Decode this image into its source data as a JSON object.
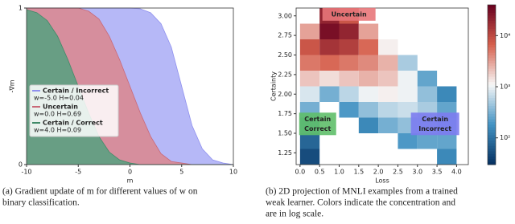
{
  "chart_data": [
    {
      "type": "area",
      "x_label": "m",
      "y_label": "-∇m",
      "x": [
        -10,
        -9,
        -8,
        -7,
        -6,
        -5,
        -4,
        -3,
        -2,
        -1,
        0,
        1,
        2,
        3,
        4,
        5,
        6,
        7,
        8,
        9,
        10
      ],
      "series": [
        {
          "name": "Certain / Incorrect",
          "legend_detail": "w=-5.0  H=0.04",
          "color": "#b0b2f6",
          "line_color": "#8f90ee",
          "values": [
            1,
            1,
            1,
            1,
            1,
            1,
            1,
            1,
            1,
            1,
            1,
            0.995,
            0.97,
            0.9,
            0.75,
            0.5,
            0.25,
            0.1,
            0.03,
            0.01,
            0
          ]
        },
        {
          "name": "Uncertain",
          "legend_detail": "w=0.0  H=0.69",
          "color": "#d98a95",
          "line_color": "#c96878",
          "values": [
            1,
            1,
            1,
            1,
            1,
            1,
            0.98,
            0.93,
            0.82,
            0.67,
            0.5,
            0.33,
            0.18,
            0.07,
            0.02,
            0.01,
            0,
            0,
            0,
            0,
            0
          ]
        },
        {
          "name": "Certain / Correct",
          "legend_detail": "w=4.0  H=0.09",
          "color": "#5e9f82",
          "line_color": "#3f8a68",
          "values": [
            0.99,
            0.97,
            0.92,
            0.82,
            0.67,
            0.5,
            0.33,
            0.18,
            0.08,
            0.03,
            0.01,
            0,
            0,
            0,
            0,
            0,
            0,
            0,
            0,
            0,
            0
          ]
        }
      ],
      "xlim": [
        -10,
        10
      ],
      "ylim": [
        0,
        1
      ],
      "xticks": [
        -10,
        -5,
        0,
        5,
        10
      ],
      "yticks": [
        0,
        1
      ],
      "grid": false,
      "caption": [
        "(a) Gradient update of m for different values of w on",
        "binary classification."
      ]
    },
    {
      "type": "heatmap",
      "x_label": "Loss",
      "y_label": "Certainty",
      "x": [
        0.25,
        0.25,
        0.25,
        0.25,
        0.25,
        0.25,
        0.25,
        0.25,
        0.25,
        0.75,
        0.75,
        0.75,
        0.75,
        0.75,
        0.75,
        1.25,
        1.25,
        1.25,
        1.25,
        1.25,
        1.25,
        1.25,
        1.75,
        1.75,
        1.75,
        1.75,
        1.75,
        1.75,
        1.75,
        2.25,
        2.25,
        2.25,
        2.25,
        2.25,
        2.25,
        2.75,
        2.75,
        2.75,
        2.75,
        2.75,
        2.75,
        3.25,
        3.25,
        3.25,
        3.25,
        3.25,
        3.75,
        3.75,
        3.75,
        3.75,
        3.75
      ],
      "y": [
        1.2,
        1.4,
        1.6,
        1.8,
        2.0,
        2.2,
        2.4,
        2.6,
        2.8,
        2.0,
        2.2,
        2.4,
        2.6,
        2.8,
        3.0,
        1.8,
        2.0,
        2.2,
        2.4,
        2.6,
        2.8,
        3.0,
        1.6,
        1.8,
        2.0,
        2.2,
        2.4,
        2.6,
        2.8,
        1.6,
        1.8,
        2.0,
        2.2,
        2.4,
        2.6,
        1.4,
        1.6,
        1.8,
        2.0,
        2.2,
        2.4,
        1.4,
        1.6,
        1.8,
        2.0,
        2.2,
        1.2,
        1.4,
        1.6,
        1.8,
        2.0
      ],
      "values": [
        50,
        80,
        150,
        300,
        800,
        2000,
        5000,
        8000,
        3000,
        300,
        1500,
        6000,
        15000,
        30000,
        20000,
        200,
        600,
        2000,
        5000,
        12000,
        20000,
        8000,
        150,
        400,
        1000,
        2500,
        4000,
        6000,
        3000,
        300,
        600,
        1200,
        2000,
        2500,
        1200,
        200,
        400,
        700,
        1000,
        1000,
        500,
        250,
        400,
        500,
        400,
        250,
        150,
        250,
        300,
        250,
        150
      ],
      "xlim": [
        -0.1,
        4.3
      ],
      "ylim": [
        1.1,
        3.1
      ],
      "xticks": [
        {
          "value": 0,
          "label": "0.0"
        },
        0.5,
        {
          "value": 1,
          "label": "1.0"
        },
        1.5,
        {
          "value": 2,
          "label": "2.0"
        },
        2.5,
        {
          "value": 3,
          "label": "3.0"
        },
        3.5,
        {
          "value": 4,
          "label": "4.0"
        }
      ],
      "yticks": [
        1.25,
        {
          "value": 1.5,
          "label": "1.50"
        },
        1.75,
        {
          "value": 2,
          "label": "2.00"
        },
        2.25,
        {
          "value": 2.5,
          "label": "2.50"
        },
        2.75,
        {
          "value": 3,
          "label": "3.00"
        }
      ],
      "log_color_scale": true,
      "clim": [
        30,
        40000
      ],
      "colormap": [
        "#053061",
        "#4393c3",
        "#f7f7f7",
        "#d6604d",
        "#67001f"
      ],
      "cticks": [
        {
          "value": 100,
          "label": "10²"
        },
        {
          "value": 1000,
          "label": "10³"
        },
        {
          "value": 10000,
          "label": "10⁴"
        }
      ],
      "annotations": [
        {
          "lines": [
            "Uncertain"
          ],
          "color": "#e8777a"
        },
        {
          "lines": [
            "Certain",
            "Correct"
          ],
          "color": "#5fbf6a"
        },
        {
          "lines": [
            "Certain",
            "Incorrect"
          ],
          "color": "#7c7cf0"
        }
      ],
      "caption": [
        "(b) 2D projection of MNLI examples from a trained",
        "weak learner. Colors indicate the concentration and",
        "are in log scale."
      ]
    }
  ]
}
